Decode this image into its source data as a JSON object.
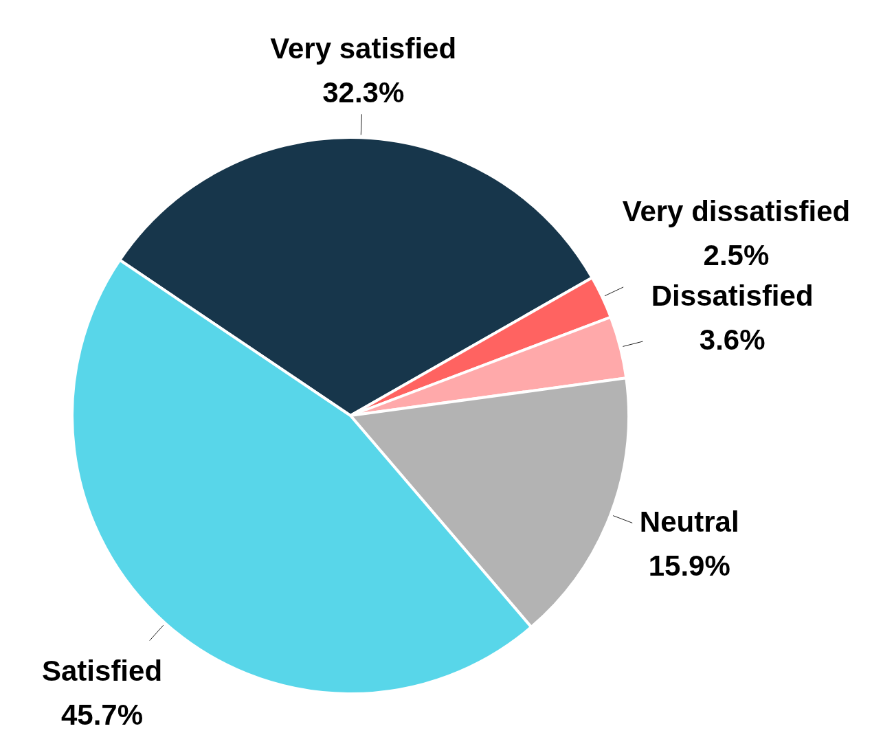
{
  "chart_data": {
    "type": "pie",
    "categories": [
      "Very satisfied",
      "Very dissatisfied",
      "Dissatisfied",
      "Neutral",
      "Satisfied"
    ],
    "values": [
      32.3,
      2.5,
      3.6,
      15.9,
      45.7
    ],
    "colors": [
      "#17364b",
      "#ff6361",
      "#ffa9aa",
      "#b3b3b3",
      "#58d6e9"
    ],
    "value_labels": [
      "32.3%",
      "2.5%",
      "3.6%",
      "15.9%",
      "45.7%"
    ]
  }
}
